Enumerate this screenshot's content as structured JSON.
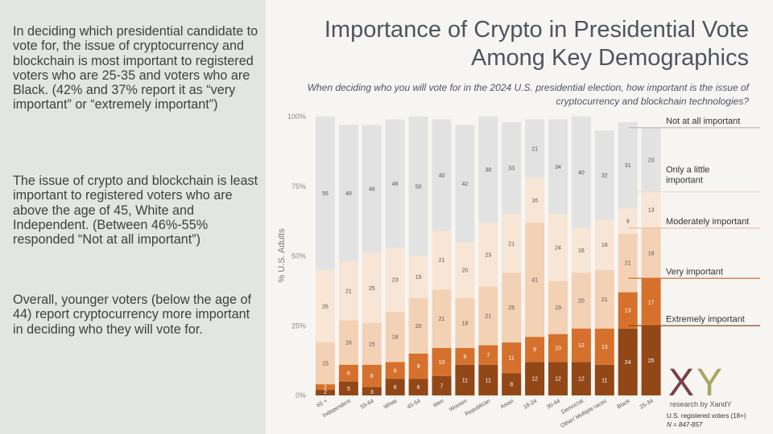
{
  "left_panel": {
    "paragraph_1": "In deciding which presidential candidate to vote for, the issue of cryptocurrency and blockchain is most important to registered voters who are 25-35 and voters who are Black. (42% and 37% report it as  “very important” or “extremely important”)",
    "paragraph_2": "The issue of crypto and blockchain is least important to registered voters who are above the age of 45, White and Independent. (Between 46%-55% responded “Not at all important”)",
    "paragraph_3": "Overall, younger voters (below the age of 44) report cryptocurrency more important in deciding who they will vote for."
  },
  "logo": {
    "text": "XY",
    "subtitle": "research by XandY"
  },
  "footnote": {
    "line1": "U.S. registered voters  (18+)",
    "line2": "N = 847-857"
  },
  "colors": {
    "not_at_all": "#e2e2e2",
    "only_a_little": "#f7e5d6",
    "moderately": "#f3d1b5",
    "very": "#d5712c",
    "extremely": "#924717",
    "legend_line_not_at_all": "#bbbbbb",
    "legend_line_little": "#eed9c4",
    "legend_line_moderately": "#e9bf9c",
    "legend_line_very": "#d5712c",
    "legend_line_extremely": "#924717"
  },
  "chart_data": {
    "type": "bar",
    "stacked": true,
    "title": "Importance of Crypto in Presidential Vote Among Key Demographics",
    "subtitle": "When deciding who you will vote for in the 2024 U.S. presidential election, how important is the issue of cryptocurrency and blockchain technologies?",
    "ylabel": "% U.S. Adults",
    "ylim": [
      0,
      100
    ],
    "yticks": [
      "0%",
      "25%",
      "50%",
      "75%",
      "100%"
    ],
    "legend_placement": "right",
    "categories": [
      "65 +",
      "Independent",
      "55-64",
      "White",
      "45-54",
      "Men",
      "Women",
      "Republican",
      "Asian",
      "18-24",
      "35-44",
      "Democrat",
      "Other/ Multiple races",
      "Black",
      "25-34"
    ],
    "series": [
      {
        "name": "Extremely important",
        "values": [
          2,
          5,
          3,
          6,
          6,
          7,
          11,
          11,
          8,
          12,
          12,
          12,
          11,
          24,
          25
        ]
      },
      {
        "name": "Very important",
        "values": [
          2,
          6,
          8,
          6,
          9,
          10,
          6,
          7,
          11,
          9,
          10,
          12,
          13,
          13,
          17
        ]
      },
      {
        "name": "Moderately important",
        "values": [
          15,
          16,
          15,
          18,
          20,
          21,
          18,
          21,
          25,
          41,
          19,
          20,
          21,
          21,
          18
        ]
      },
      {
        "name": "Only a little important",
        "values": [
          26,
          21,
          25,
          23,
          15,
          21,
          20,
          23,
          21,
          16,
          24,
          16,
          18,
          9,
          13
        ]
      },
      {
        "name": "Not at all important",
        "values": [
          55,
          49,
          46,
          46,
          50,
          40,
          42,
          38,
          33,
          21,
          34,
          40,
          32,
          31,
          23
        ]
      }
    ]
  }
}
